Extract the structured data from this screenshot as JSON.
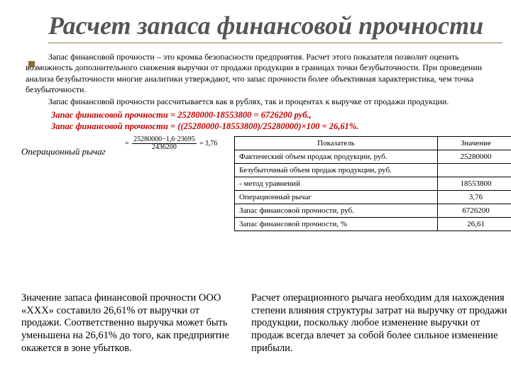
{
  "title": "Расчет запаса финансовой прочности",
  "intro1": "Запас финансовой прочности – это кромка безопасности предприятия. Расчет этого показателя позволит оценить возможность дополнительного снижения выручки от продажи продукции в границах точки безубыточности.  При проведении анализа безубыточности многие аналитики утверждают, что запас прочности более объективная характеристика, чем точка безубыточности.",
  "intro2": "Запас финансовой прочности рассчитывается как в рублях, так и процентах к выручке от продажи продукции.",
  "calc1": "Запас финансовой прочности = 25280000-18553800 = 6726200 руб.,",
  "calc2": "Запас финансовой прочности = ((25280000-18553800)/25280000)×100 = 26,61%.",
  "lever_label": "Операционный рычаг",
  "formula": {
    "num1": "25280000−1,6·23695",
    "den1": "2436200",
    "result": "3,76"
  },
  "table": {
    "headers": [
      "Показатель",
      "Значение"
    ],
    "rows": [
      [
        "Фактический объем продаж продукции, руб.",
        "25280000"
      ],
      [
        "Безубыточный объем продаж продукции, руб.",
        ""
      ],
      [
        "- метод уравнений",
        "18553800"
      ],
      [
        "Операционный рычаг",
        "3,76"
      ],
      [
        "Запас финансовой прочности, руб.",
        "6726200"
      ],
      [
        "Запас финансовой прочности, %",
        "26,61"
      ]
    ]
  },
  "bottom_left": "Значение запаса финансовой прочности ООО «ХХХ» составило 26,61% от выручки от продажи. Соответственно выручка может быть уменьшена на 26,61% до того, как предприятие окажется в зоне убытков.",
  "bottom_right": "Расчет операционного рычага необходим для нахождения степени влияния структуры затрат на выручку от продажи продукции, поскольку любое изменение выручки от продаж всегда влечет за собой более сильное изменение прибыли.",
  "colors": {
    "accent": "#c00000",
    "title": "#555555",
    "bullet": "#8a6d3b"
  }
}
